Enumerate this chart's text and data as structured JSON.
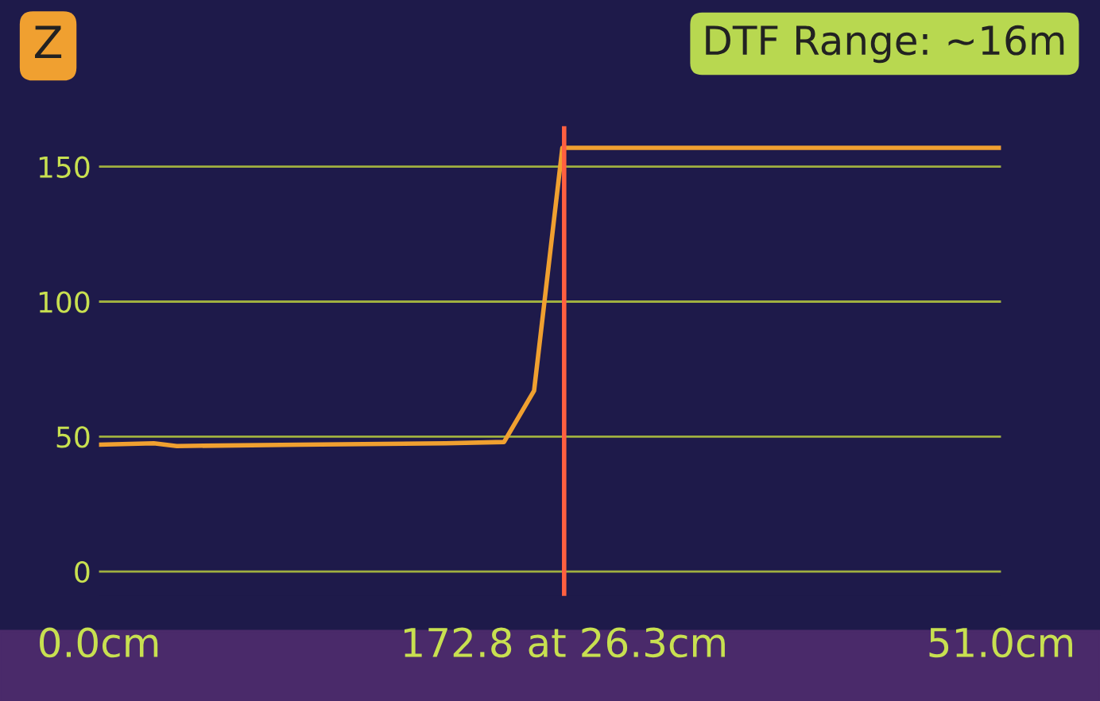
{
  "chart_data": {
    "type": "line",
    "title": "Z",
    "subtitle": "DTF Range: ~16m",
    "x": [
      0,
      3.1,
      4.4,
      11.4,
      19.6,
      22.9,
      24.6,
      26.2,
      51
    ],
    "series": [
      {
        "color": "#f0a030",
        "values": [
          47,
          47.5,
          46.5,
          47,
          47.5,
          48,
          67,
          157,
          157
        ]
      }
    ],
    "xlim": [
      0,
      51
    ],
    "xticks": [
      {
        "value": 0,
        "label": "0.0cm"
      },
      {
        "value": 51,
        "label": "51.0cm"
      }
    ],
    "ylim": [
      -9,
      165
    ],
    "yticks": [
      0,
      50,
      100,
      150
    ],
    "grid": "y",
    "ref_lines": [
      {
        "axis": "x",
        "value": 26.3,
        "label": "172.8 at 26.3cm",
        "color": "#ff6040"
      }
    ]
  }
}
